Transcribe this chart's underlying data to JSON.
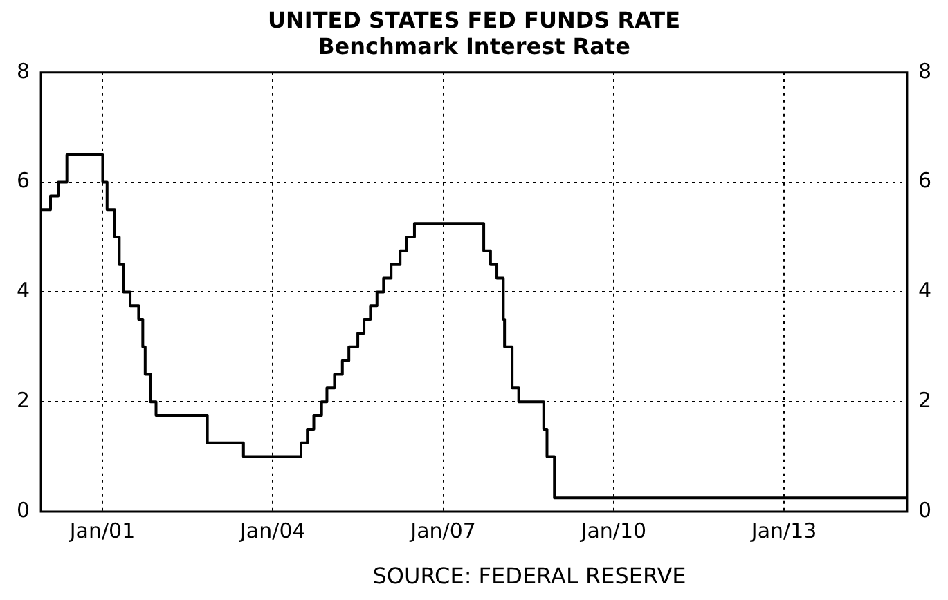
{
  "chart_data": {
    "type": "step",
    "title": "UNITED STATES FED FUNDS RATE",
    "subtitle": "Benchmark Interest Rate",
    "x": [
      "1999-12",
      "2000-02-02",
      "2000-03-21",
      "2000-05-16",
      "2001-01-03",
      "2001-01-31",
      "2001-03-20",
      "2001-04-18",
      "2001-05-15",
      "2001-06-27",
      "2001-08-21",
      "2001-09-17",
      "2001-10-02",
      "2001-11-06",
      "2001-12-11",
      "2002-11-06",
      "2003-06-25",
      "2004-06-30",
      "2004-08-10",
      "2004-09-21",
      "2004-11-10",
      "2004-12-14",
      "2005-02-02",
      "2005-03-22",
      "2005-05-03",
      "2005-06-30",
      "2005-08-09",
      "2005-09-20",
      "2005-11-01",
      "2005-12-13",
      "2006-01-31",
      "2006-03-28",
      "2006-05-10",
      "2006-06-29",
      "2007-09-18",
      "2007-10-31",
      "2007-12-11",
      "2008-01-22",
      "2008-01-30",
      "2008-03-18",
      "2008-04-30",
      "2008-10-08",
      "2008-10-29",
      "2008-12-16",
      "2015-03"
    ],
    "series": [
      {
        "color": "#000000",
        "values": [
          5.5,
          5.75,
          6.0,
          6.5,
          6.0,
          5.5,
          5.0,
          4.5,
          4.0,
          3.75,
          3.5,
          3.0,
          2.5,
          2.0,
          1.75,
          1.25,
          1.0,
          1.25,
          1.5,
          1.75,
          2.0,
          2.25,
          2.5,
          2.75,
          3.0,
          3.25,
          3.5,
          3.75,
          4.0,
          4.25,
          4.5,
          4.75,
          5.0,
          5.25,
          4.75,
          4.5,
          4.25,
          3.5,
          3.0,
          2.25,
          2.0,
          1.5,
          1.0,
          0.25,
          0.25
        ]
      }
    ],
    "xlim": [
      "1999-12",
      "2015-03"
    ],
    "xticks": [
      {
        "value": "2001-01",
        "label": "Jan/01"
      },
      {
        "value": "2004-01",
        "label": "Jan/04"
      },
      {
        "value": "2007-01",
        "label": "Jan/07"
      },
      {
        "value": "2010-01",
        "label": "Jan/10"
      },
      {
        "value": "2013-01",
        "label": "Jan/13"
      }
    ],
    "ylim": [
      0,
      8
    ],
    "yticks": [
      0,
      2,
      4,
      6,
      8
    ],
    "y2lim": [
      0,
      8
    ],
    "y2ticks": [
      0,
      2,
      4,
      6,
      8
    ],
    "grid": true,
    "line_style": "solid",
    "marker": "none",
    "annotations": [
      "SOURCE: FEDERAL RESERVE"
    ]
  }
}
